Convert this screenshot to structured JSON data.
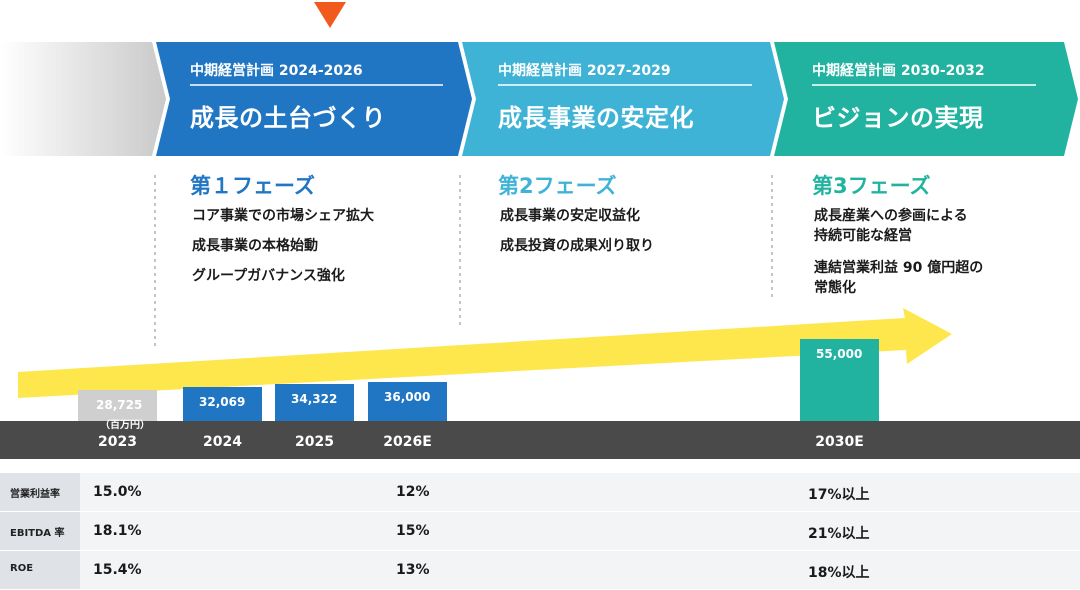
{
  "plans": [
    {
      "label": "中期経営計画 2024-2026",
      "title": "成長の土台づくり",
      "phase": "第１フェーズ",
      "items": [
        "コア事業での市場シェア拡大",
        "成長事業の本格始動",
        "グループガバナンス強化"
      ],
      "color": "#2176c4"
    },
    {
      "label": "中期経営計画 2027-2029",
      "title": "成長事業の安定化",
      "phase": "第2フェーズ",
      "items": [
        "成長事業の安定収益化",
        "成長投資の成果刈り取り"
      ],
      "color": "#3fb3d6"
    },
    {
      "label": "中期経営計画 2030-2032",
      "title": "ビジョンの実現",
      "phase": "第3フェーズ",
      "items": [
        "成長産業への参画による",
        "持続可能な経営",
        "連結営業利益 90 億円超の",
        "常態化"
      ],
      "color": "#22b3a0"
    }
  ],
  "chart_data": {
    "type": "bar",
    "unit": "（百万円）",
    "categories": [
      "2023",
      "2024",
      "2025",
      "2026E",
      "2030E"
    ],
    "values": [
      28725,
      32069,
      34322,
      36000,
      55000
    ],
    "labels": [
      "28,725",
      "32,069",
      "34,322",
      "36,000",
      "55,000"
    ],
    "colors": [
      "#cfcfcf",
      "#2176c4",
      "#2176c4",
      "#2176c4",
      "#22b3a0"
    ]
  },
  "metrics": [
    {
      "name": "営業利益率",
      "v2023": "15.0%",
      "v2026": "12%",
      "v2030": "17%以上"
    },
    {
      "name": "EBITDA 率",
      "v2023": "18.1%",
      "v2026": "15%",
      "v2030": "21%以上"
    },
    {
      "name": "ROE",
      "v2023": "15.4%",
      "v2026": "13%",
      "v2030": "18%以上"
    }
  ],
  "colors": {
    "arrow": "#fde74c",
    "marker": "#f25a1d",
    "axis": "#4a4a4a"
  }
}
